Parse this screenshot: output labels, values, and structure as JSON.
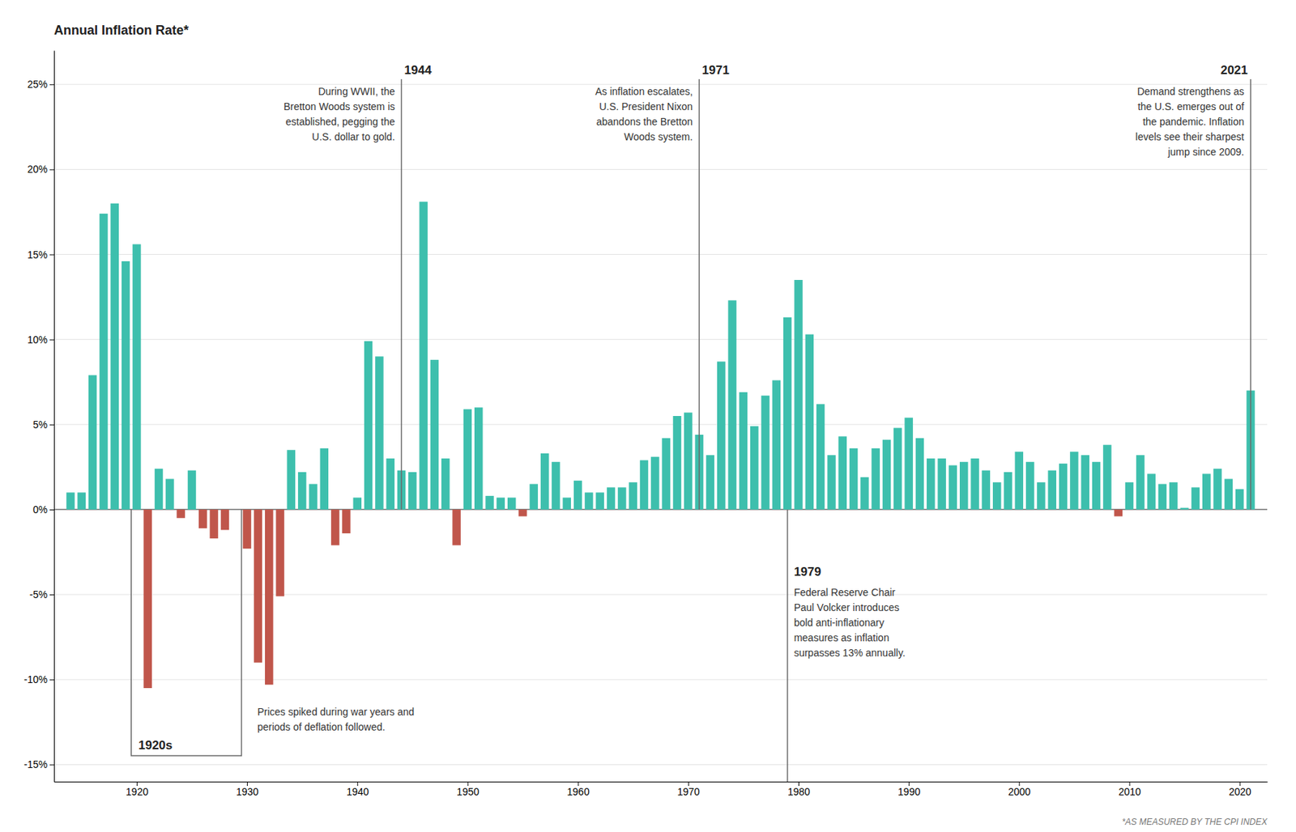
{
  "chart_data": {
    "type": "bar",
    "title": "Annual Inflation Rate*",
    "footnote": "*AS MEASURED BY THE CPI INDEX",
    "x": [
      1914,
      1915,
      1916,
      1917,
      1918,
      1919,
      1920,
      1921,
      1922,
      1923,
      1924,
      1925,
      1926,
      1927,
      1928,
      1929,
      1930,
      1931,
      1932,
      1933,
      1934,
      1935,
      1936,
      1937,
      1938,
      1939,
      1940,
      1941,
      1942,
      1943,
      1944,
      1945,
      1946,
      1947,
      1948,
      1949,
      1950,
      1951,
      1952,
      1953,
      1954,
      1955,
      1956,
      1957,
      1958,
      1959,
      1960,
      1961,
      1962,
      1963,
      1964,
      1965,
      1966,
      1967,
      1968,
      1969,
      1970,
      1971,
      1972,
      1973,
      1974,
      1975,
      1976,
      1977,
      1978,
      1979,
      1980,
      1981,
      1982,
      1983,
      1984,
      1985,
      1986,
      1987,
      1988,
      1989,
      1990,
      1991,
      1992,
      1993,
      1994,
      1995,
      1996,
      1997,
      1998,
      1999,
      2000,
      2001,
      2002,
      2003,
      2004,
      2005,
      2006,
      2007,
      2008,
      2009,
      2010,
      2011,
      2012,
      2013,
      2014,
      2015,
      2016,
      2017,
      2018,
      2019,
      2020,
      2021
    ],
    "values": [
      1.0,
      1.0,
      7.9,
      17.4,
      18.0,
      14.6,
      15.6,
      -10.5,
      2.4,
      1.8,
      -0.5,
      2.3,
      -1.1,
      -1.7,
      -1.2,
      0.0,
      -2.3,
      -9.0,
      -10.3,
      -5.1,
      3.5,
      2.2,
      1.5,
      3.6,
      -2.1,
      -1.4,
      0.7,
      9.9,
      9.0,
      3.0,
      2.3,
      2.2,
      18.1,
      8.8,
      3.0,
      -2.1,
      5.9,
      6.0,
      0.8,
      0.7,
      0.7,
      -0.4,
      1.5,
      3.3,
      2.8,
      0.7,
      1.7,
      1.0,
      1.0,
      1.3,
      1.3,
      1.6,
      2.9,
      3.1,
      4.2,
      5.5,
      5.7,
      4.4,
      3.2,
      8.7,
      12.3,
      6.9,
      4.9,
      6.7,
      7.6,
      11.3,
      13.5,
      10.3,
      6.2,
      3.2,
      4.3,
      3.6,
      1.9,
      3.6,
      4.1,
      4.8,
      5.4,
      4.2,
      3.0,
      3.0,
      2.6,
      2.8,
      3.0,
      2.3,
      1.6,
      2.2,
      3.4,
      2.8,
      1.6,
      2.3,
      2.7,
      3.4,
      3.2,
      2.8,
      3.8,
      -0.4,
      1.6,
      3.2,
      2.1,
      1.5,
      1.6,
      0.1,
      1.3,
      2.1,
      2.4,
      1.8,
      1.2,
      7.0
    ],
    "colors": [
      "#3dbfad",
      "#3dbfad",
      "#3dbfad",
      "#3dbfad",
      "#3dbfad",
      "#3dbfad",
      "#3dbfad",
      "#c0564b",
      "#3dbfad",
      "#3dbfad",
      "#c0564b",
      "#3dbfad",
      "#c0564b",
      "#c0564b",
      "#c0564b",
      "#3dbfad",
      "#c0564b",
      "#c0564b",
      "#c0564b",
      "#c0564b",
      "#3dbfad",
      "#3dbfad",
      "#3dbfad",
      "#3dbfad",
      "#c0564b",
      "#c0564b",
      "#3dbfad",
      "#3dbfad",
      "#3dbfad",
      "#3dbfad",
      "#3dbfad",
      "#3dbfad",
      "#3dbfad",
      "#3dbfad",
      "#3dbfad",
      "#c0564b",
      "#3dbfad",
      "#3dbfad",
      "#3dbfad",
      "#3dbfad",
      "#3dbfad",
      "#c0564b",
      "#3dbfad",
      "#3dbfad",
      "#3dbfad",
      "#3dbfad",
      "#3dbfad",
      "#3dbfad",
      "#3dbfad",
      "#3dbfad",
      "#3dbfad",
      "#3dbfad",
      "#3dbfad",
      "#3dbfad",
      "#3dbfad",
      "#3dbfad",
      "#3dbfad",
      "#3dbfad",
      "#3dbfad",
      "#3dbfad",
      "#3dbfad",
      "#3dbfad",
      "#3dbfad",
      "#3dbfad",
      "#3dbfad",
      "#3dbfad",
      "#3dbfad",
      "#3dbfad",
      "#3dbfad",
      "#3dbfad",
      "#3dbfad",
      "#3dbfad",
      "#3dbfad",
      "#3dbfad",
      "#3dbfad",
      "#3dbfad",
      "#3dbfad",
      "#3dbfad",
      "#3dbfad",
      "#3dbfad",
      "#3dbfad",
      "#3dbfad",
      "#3dbfad",
      "#3dbfad",
      "#3dbfad",
      "#3dbfad",
      "#3dbfad",
      "#3dbfad",
      "#3dbfad",
      "#3dbfad",
      "#3dbfad",
      "#3dbfad",
      "#3dbfad",
      "#3dbfad",
      "#3dbfad",
      "#c0564b",
      "#3dbfad",
      "#3dbfad",
      "#3dbfad",
      "#3dbfad",
      "#3dbfad",
      "#3dbfad",
      "#3dbfad",
      "#3dbfad",
      "#3dbfad",
      "#3dbfad",
      "#3dbfad",
      "#3dbfad"
    ],
    "xlim": [
      1912.5,
      2022.5
    ],
    "xticks": [
      1920,
      1930,
      1940,
      1950,
      1960,
      1970,
      1980,
      1990,
      2000,
      2010,
      2020
    ],
    "ylim": [
      -16,
      27
    ],
    "yticks": [
      {
        "value": -15,
        "label": "-15%"
      },
      {
        "value": -10,
        "label": "-10%"
      },
      {
        "value": -5,
        "label": "-5%"
      },
      {
        "value": 0,
        "label": "0%"
      },
      {
        "value": 5,
        "label": "5%"
      },
      {
        "value": 10,
        "label": "10%"
      },
      {
        "value": 15,
        "label": "15%"
      },
      {
        "value": 20,
        "label": "20%"
      },
      {
        "value": 25,
        "label": "25%"
      }
    ],
    "grid": true,
    "annotations": [
      {
        "label": "1920s",
        "x": [
          1920,
          1929
        ],
        "text": "Prices spiked during war years and\nperiods of deflation followed."
      },
      {
        "label": "1944",
        "x": 1944,
        "text": "During WWII, the\nBretton Woods system is\nestablished, pegging the\nU.S. dollar to gold."
      },
      {
        "label": "1971",
        "x": 1971,
        "text": "As inflation escalates,\nU.S. President Nixon\nabandons the Bretton\nWoods system."
      },
      {
        "label": "1979",
        "x": 1979,
        "text": "Federal Reserve Chair\nPaul Volcker introduces\nbold anti-inflationary\nmeasures as inflation\nsurpasses 13% annually."
      },
      {
        "label": "2021",
        "x": 2021,
        "text": "Demand strengthens as\nthe U.S. emerges out of\nthe pandemic. Inflation\nlevels see their sharpest\njump since 2009."
      }
    ]
  }
}
